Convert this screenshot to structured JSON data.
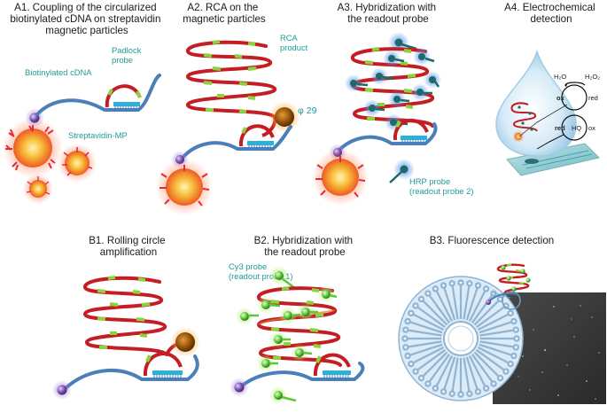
{
  "panels": {
    "a1": {
      "title_lines": [
        "A1. Coupling of the circularized",
        "biotinylated cDNA on streptavidin",
        "magnetic particles"
      ],
      "labels": {
        "padlock_lines": [
          "Padlock",
          "probe"
        ],
        "biotin_cdna": "Biotinylated cDNA",
        "streptavidin_mp": "Streptavidin-MP"
      }
    },
    "a2": {
      "title_lines": [
        "A2. RCA on the",
        "magnetic particles"
      ],
      "labels": {
        "rca_lines": [
          "RCA",
          "product"
        ],
        "phi29": "φ 29"
      }
    },
    "a3": {
      "title_lines": [
        "A3. Hybridization with",
        "the readout probe"
      ],
      "labels": {
        "hrp_lines": [
          "HRP probe",
          "(readout probe 2)"
        ]
      }
    },
    "a4": {
      "title_lines": [
        "A4. Electrochemical",
        "detection"
      ],
      "labels": {
        "h2o": "H₂O",
        "h2o2": "H₂O₂",
        "ox_left": "ox",
        "red_right": "red",
        "red_left": "red",
        "hq": "HQ",
        "ox_right": "ox"
      }
    },
    "b1": {
      "title_lines": [
        "B1. Rolling circle",
        "amplification"
      ]
    },
    "b2": {
      "title_lines": [
        "B2. Hybridization with",
        "the readout probe"
      ],
      "labels": {
        "cy3_lines": [
          "Cy3 probe",
          "(readout probe 1)"
        ]
      }
    },
    "b3": {
      "title_lines": [
        "B3. Fluorescence detection"
      ]
    }
  },
  "colors": {
    "dna_strand": "#4a7fb8",
    "rca_red": "#c41e24",
    "rca_green": "#8cd23c",
    "padlock_blue": "#2bb0d8",
    "biotin": "#7a52b0",
    "teal_text": "#1f9a9a",
    "particle_core": "#f4b62a",
    "particle_glow": "#ff3d2e",
    "probe_teal": "#1d6a68",
    "probe_green": "#5ac83a",
    "phi29_core": "#9a5a08",
    "drop_blue": "#cfe6f4",
    "disc": "#a9cce3"
  }
}
